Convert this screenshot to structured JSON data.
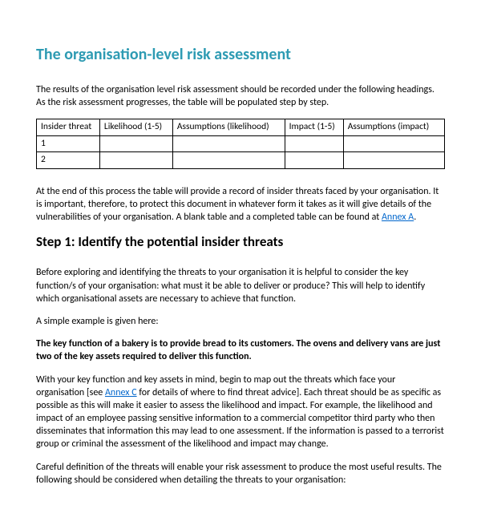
{
  "title": "The organisation-level risk assessment",
  "intro": "The results of the organisation level risk assessment should be recorded under the following headings. As the risk assessment progresses, the table will be populated step by step.",
  "table": {
    "headers": [
      "Insider threat",
      "Likelihood (1-5)",
      "Assumptions (likelihood)",
      "Impact (1-5)",
      "Assumptions (impact)"
    ],
    "rows": [
      [
        "1",
        "",
        "",
        "",
        ""
      ],
      [
        "2",
        "",
        "",
        "",
        ""
      ]
    ]
  },
  "post_table_1": "At the end of this process the table will provide a record of insider threats faced by your organisation. It is important, therefore, to protect this document in whatever form it takes as it will give details of the vulnerabilities of your organisation. A blank table and a completed table can be found at ",
  "annex_a": "Annex A",
  "post_table_2": ".",
  "step_title": "Step 1: Identify the potential insider threats",
  "p1": "Before exploring and identifying the threats to your organisation it is helpful to consider the key function/s of your organisation: what must it be able to deliver or produce? This will help to identify which organisational assets are necessary to achieve that function.",
  "p2": "A simple example is given here:",
  "p3": "The key function of a bakery is to provide bread to its customers. The ovens and delivery vans are just two of the key assets required to deliver this function.",
  "p4a": "With your key function and key assets in mind, begin to map out the threats which face your organisation [see ",
  "annex_c": "Annex C",
  "p4b": " for details of where to find threat advice]. Each threat should be as specific as possible as this will make it easier to assess the likelihood and impact. For example, the likelihood and impact of an employee passing sensitive information to a commercial competitor third party who then disseminates that information this may lead to one assessment. If the information is passed to a terrorist group or criminal the assessment of the likelihood and impact may change.",
  "p5": "Careful definition of the threats will enable your risk assessment to produce the most useful results. The following should be considered when detailing the threats to your organisation:",
  "colors": {
    "title": "#2e9bb3",
    "link": "#0066cc",
    "text": "#000000",
    "border": "#000000",
    "background": "#ffffff"
  }
}
